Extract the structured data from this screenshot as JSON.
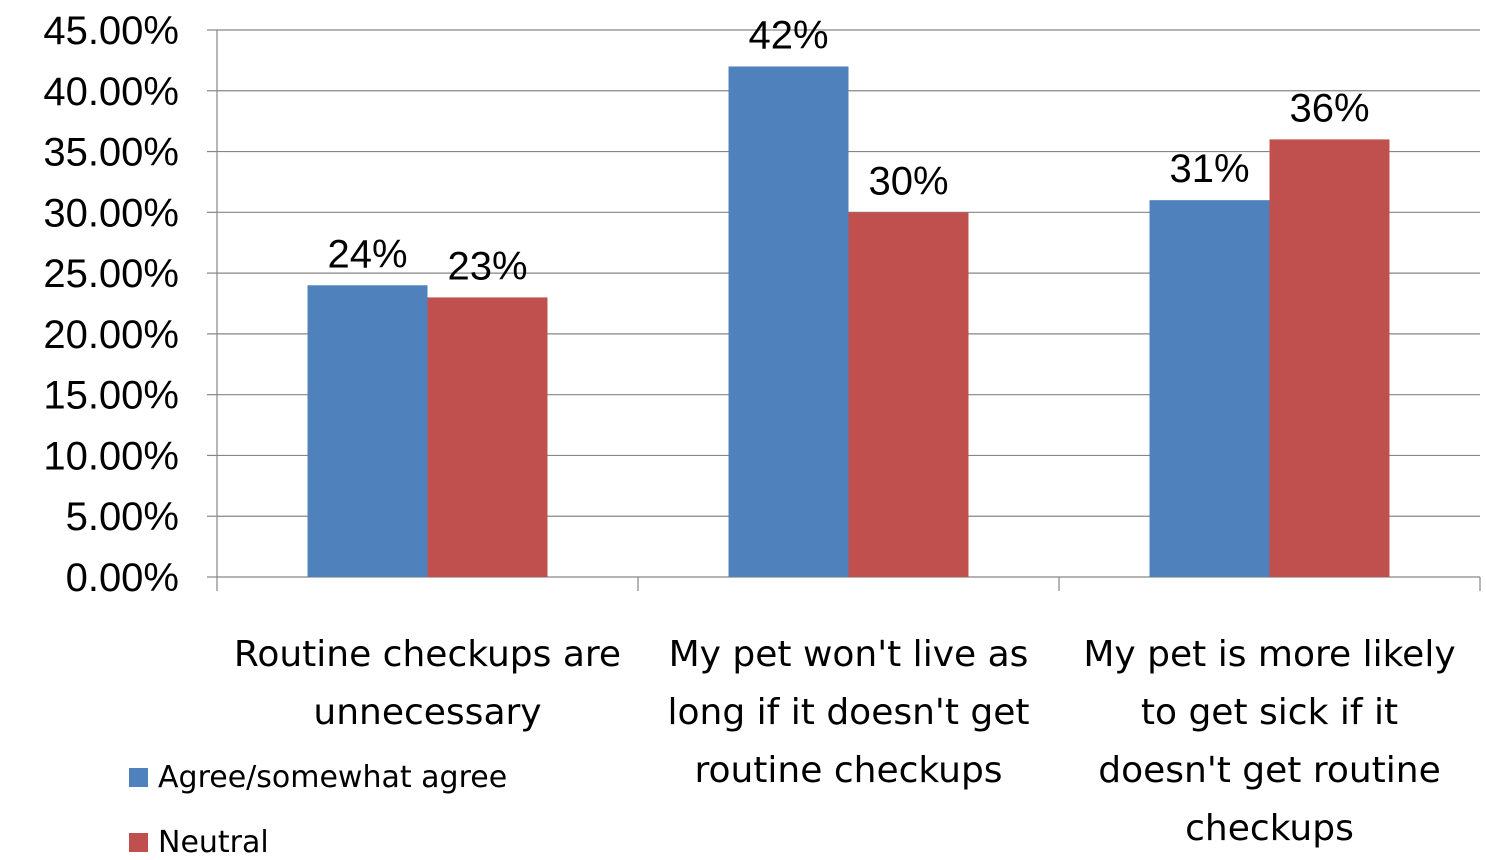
{
  "chart_data": {
    "type": "bar",
    "title": "",
    "xlabel": "",
    "ylabel": "",
    "ylim": [
      0,
      45
    ],
    "y_tick_step": 5,
    "y_tick_labels": [
      "0.00%",
      "5.00%",
      "10.00%",
      "15.00%",
      "20.00%",
      "25.00%",
      "30.00%",
      "35.00%",
      "40.00%",
      "45.00%"
    ],
    "grid": true,
    "legend_position": "bottom-left",
    "categories": [
      [
        "Routine checkups are",
        "unnecessary"
      ],
      [
        "My pet won't live as",
        "long if it doesn't get",
        "routine checkups"
      ],
      [
        "My pet is more likely",
        "to get sick if it",
        "doesn't get routine",
        "checkups"
      ]
    ],
    "series": [
      {
        "name": "Agree/somewhat agree",
        "color": "#4F81BD",
        "values": [
          24,
          42,
          31
        ],
        "labels": [
          "24%",
          "42%",
          "31%"
        ]
      },
      {
        "name": "Neutral",
        "color": "#C0504D",
        "values": [
          23,
          30,
          36
        ],
        "labels": [
          "23%",
          "30%",
          "36%"
        ]
      }
    ]
  }
}
